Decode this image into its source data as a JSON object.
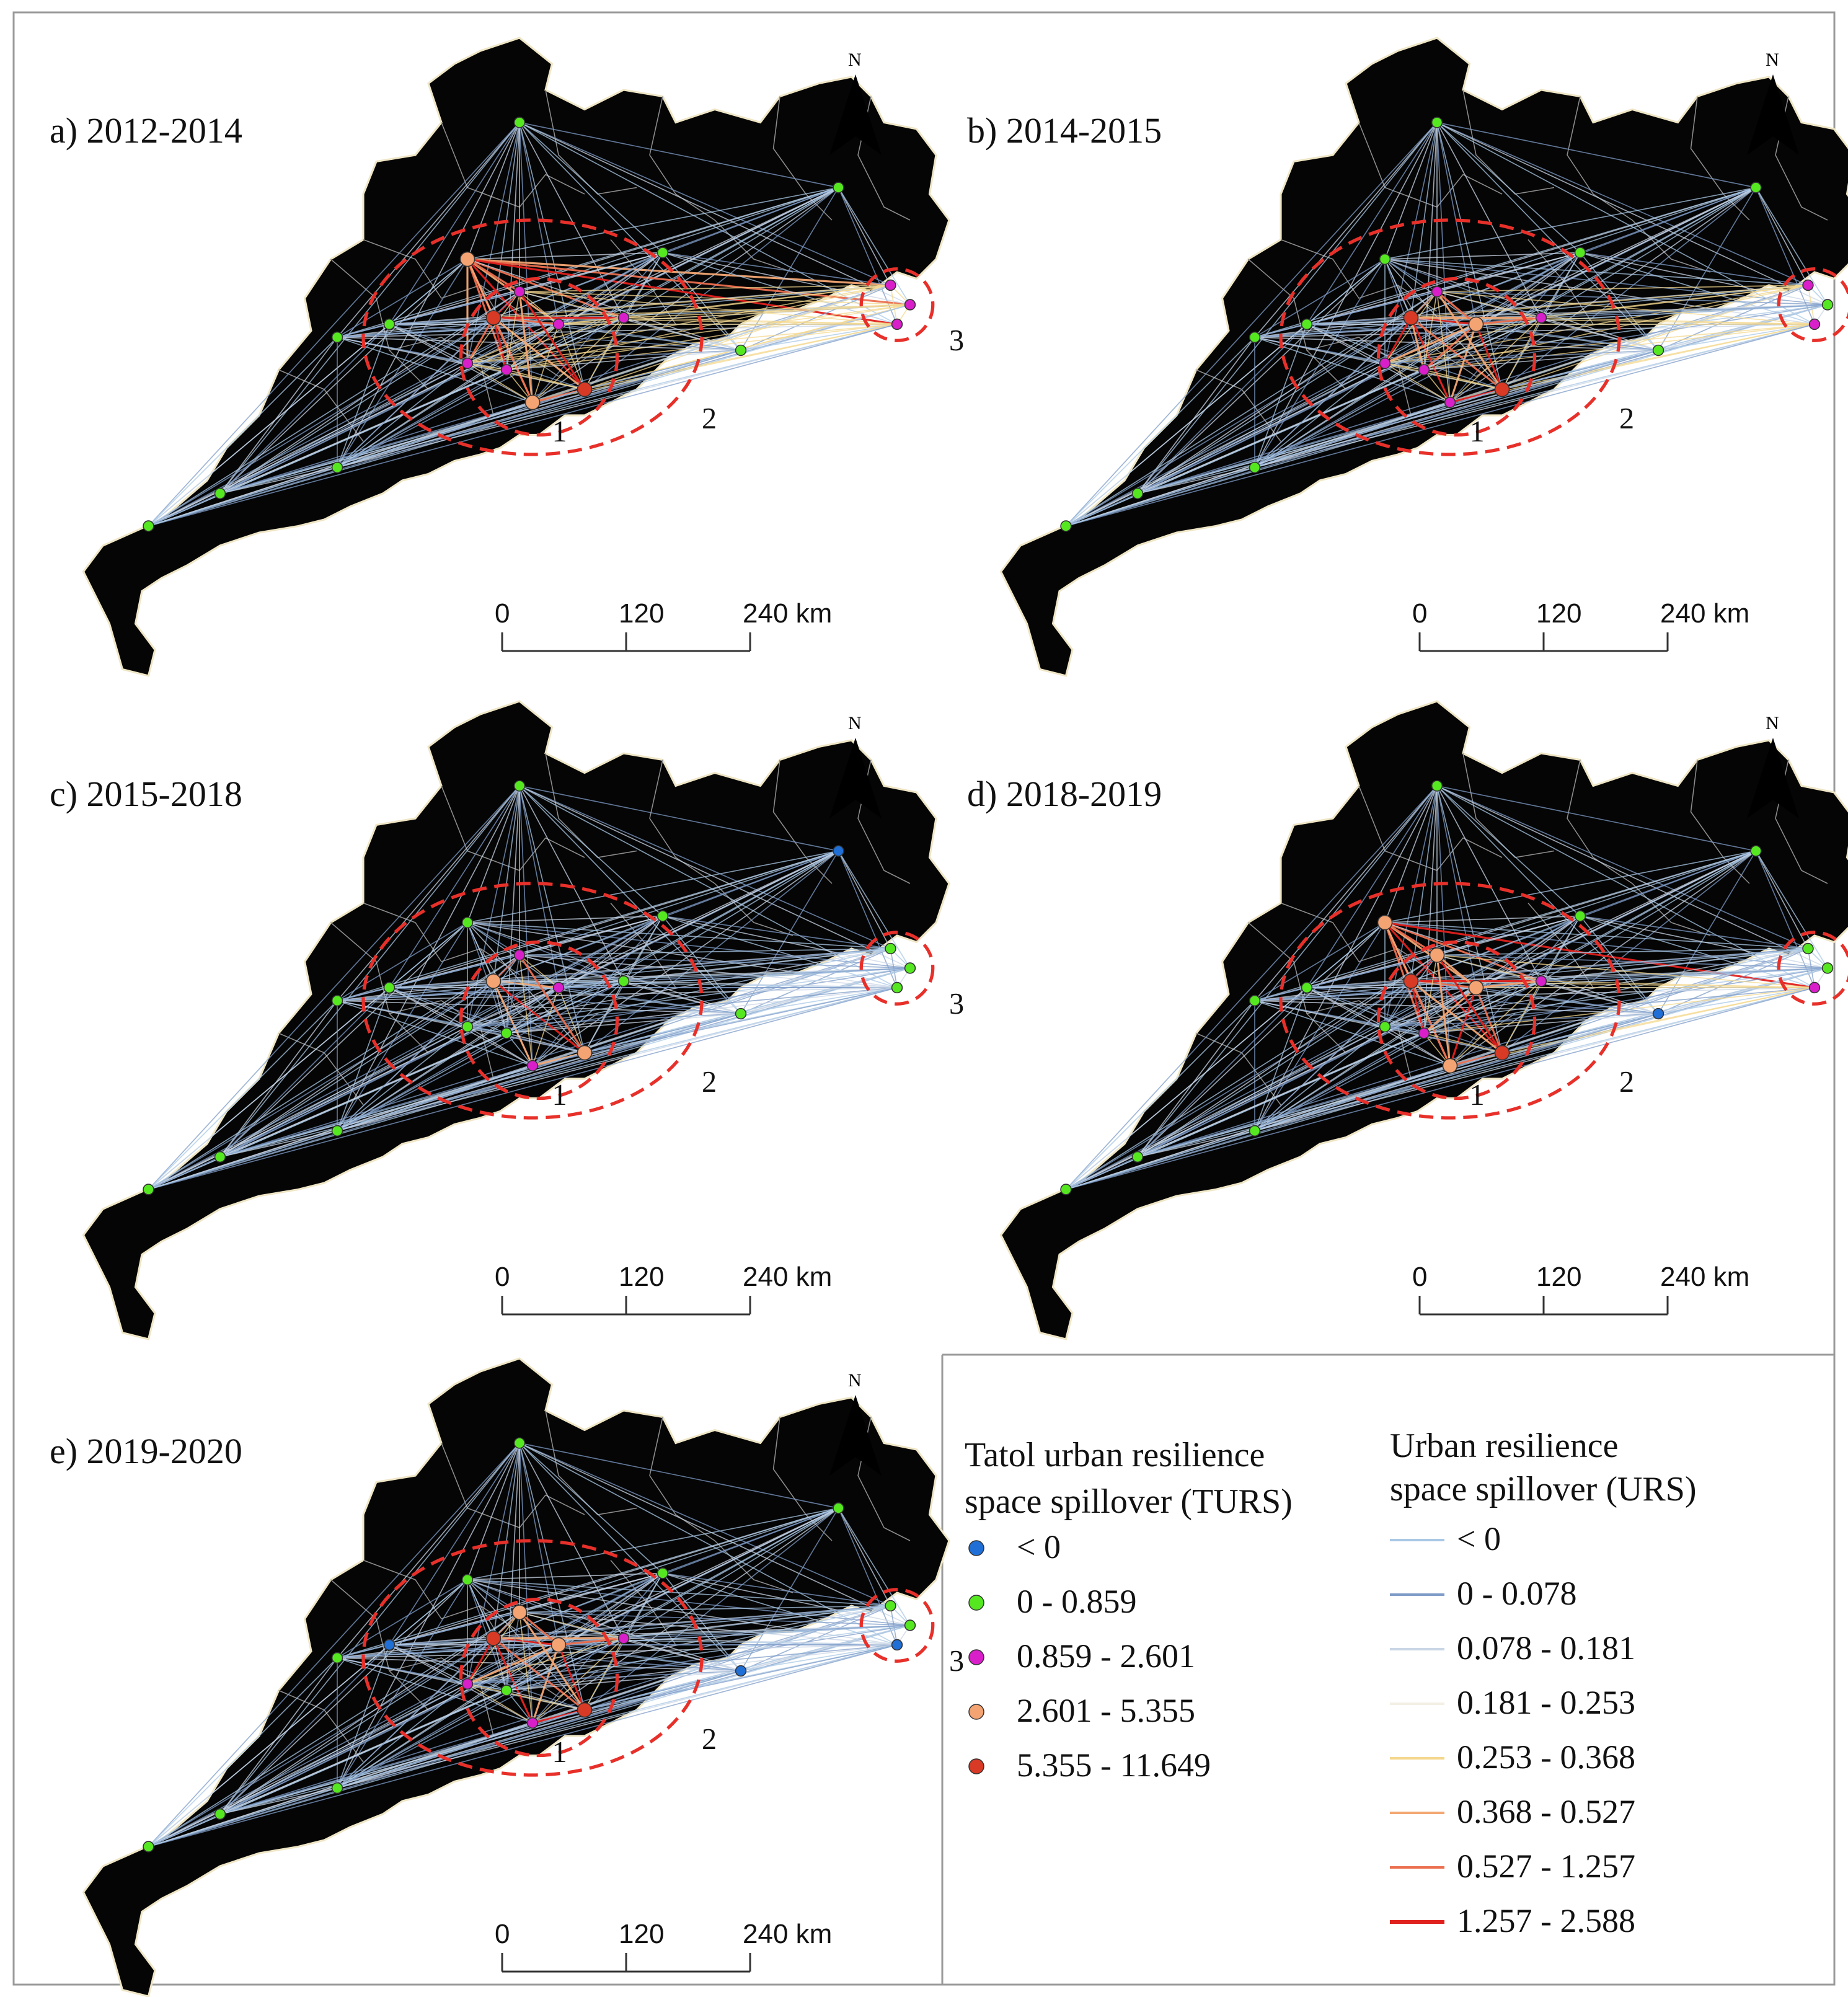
{
  "panels": [
    {
      "id": "a",
      "label": "a) 2012-2014",
      "variant": 0
    },
    {
      "id": "b",
      "label": "b) 2014-2015",
      "variant": 1
    },
    {
      "id": "c",
      "label": "c) 2015-2018",
      "variant": 2
    },
    {
      "id": "d",
      "label": "d) 2018-2019",
      "variant": 3
    },
    {
      "id": "e",
      "label": "e) 2019-2020",
      "variant": 4
    }
  ],
  "north_arrow": {
    "label": "N"
  },
  "scale_bar": {
    "ticks": [
      "0",
      "120",
      "240 km"
    ]
  },
  "zone_labels": [
    "1",
    "2",
    "3"
  ],
  "legend": {
    "turs": {
      "title_line1": "Tatol urban resilience",
      "title_line2": "space spillover (TURS)",
      "classes": [
        {
          "label": "< 0",
          "color": "#1f6fd6"
        },
        {
          "label": "0 - 0.859",
          "color": "#55e820"
        },
        {
          "label": "0.859 - 2.601",
          "color": "#d81fc9"
        },
        {
          "label": "2.601 - 5.355",
          "color": "#f4a372"
        },
        {
          "label": "5.355 - 11.649",
          "color": "#d83a25"
        }
      ]
    },
    "urs": {
      "title_line1": "Urban resilience",
      "title_line2": "space spillover (URS)",
      "classes": [
        {
          "label": "< 0",
          "color": "#a9c8e6"
        },
        {
          "label": "0 - 0.078",
          "color": "#7f9cc8"
        },
        {
          "label": "0.078 - 0.181",
          "color": "#c9d6e6"
        },
        {
          "label": "0.181 - 0.253",
          "color": "#f3efe4"
        },
        {
          "label": "0.253 - 0.368",
          "color": "#f4d88e"
        },
        {
          "label": "0.368 - 0.527",
          "color": "#f3a773"
        },
        {
          "label": "0.527 - 1.257",
          "color": "#eb6f4f"
        },
        {
          "label": "1.257 - 2.588",
          "color": "#e0201c"
        }
      ]
    }
  },
  "colors": {
    "land": "#050505",
    "coast": "#efe6c6",
    "zone": "#e8302a",
    "border": "#8c8c8c"
  }
}
